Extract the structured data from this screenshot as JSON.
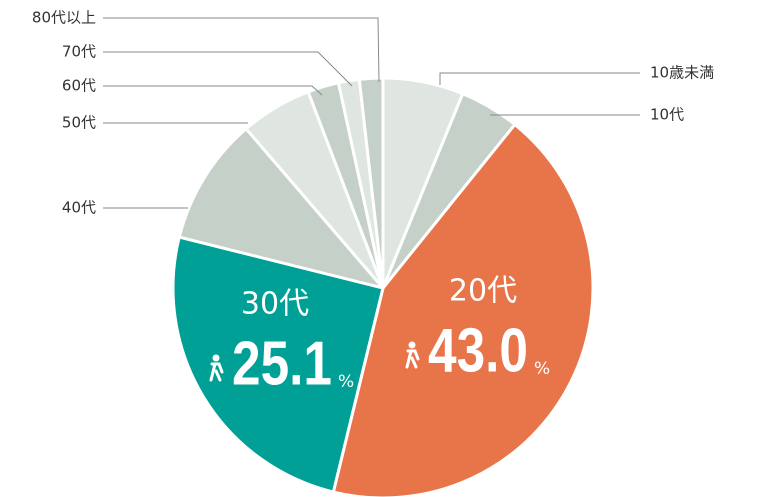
{
  "chart_data": {
    "type": "pie",
    "categories": [
      "10歳未満",
      "10代",
      "20代",
      "30代",
      "40代",
      "50代",
      "60代",
      "70代",
      "80代以上"
    ],
    "values": [
      6.2,
      4.6,
      43.0,
      25.1,
      9.8,
      5.5,
      2.4,
      1.6,
      1.8
    ],
    "value_labels": [
      null,
      null,
      "43.0",
      "25.1",
      null,
      null,
      null,
      null,
      null
    ],
    "unit": "%",
    "colors": [
      "#dfe5e1",
      "#c5d0c8",
      "#e8744a",
      "#00a096",
      "#c5d0c8",
      "#dfe5e1",
      "#c5d0c8",
      "#dfe5e1",
      "#c5d0c8"
    ]
  }
}
